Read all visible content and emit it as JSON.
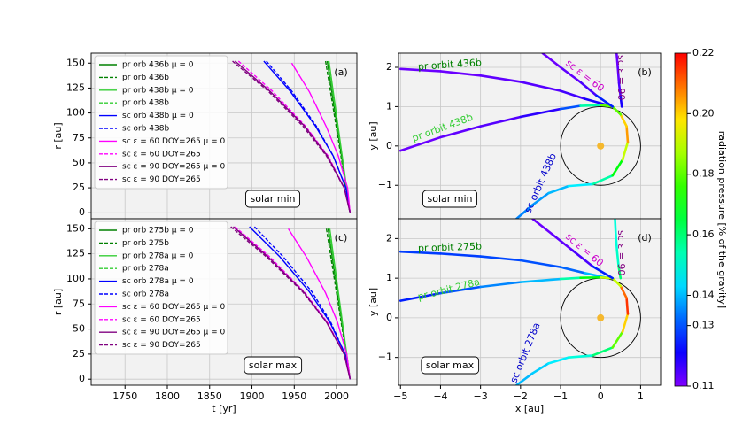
{
  "chart_data": [
    {
      "type": "line",
      "panel_label": "(a)",
      "annotation": "solar min",
      "ylabel": "r [au]",
      "xlim": [
        1710,
        2024
      ],
      "ylim": [
        -6,
        160
      ],
      "xticks": [
        1750,
        1800,
        1850,
        1900,
        1950,
        2000
      ],
      "xtick_labels": false,
      "yticks": [
        0,
        25,
        50,
        75,
        100,
        125,
        150
      ],
      "grid": true,
      "legend": "upper left",
      "series": [
        {
          "name": "pr orb 436b μ = 0",
          "color": "#008000",
          "dash": "solid",
          "x": [
            1989,
            2016
          ],
          "values": [
            152,
            0
          ]
        },
        {
          "name": "pr orb 436b",
          "color": "#008000",
          "dash": "dashed",
          "x": [
            1987,
            2016
          ],
          "values": [
            152,
            0
          ]
        },
        {
          "name": "pr orb 438b μ = 0",
          "color": "#32cd32",
          "dash": "solid",
          "x": [
            1991,
            2016
          ],
          "values": [
            152,
            0
          ]
        },
        {
          "name": "pr orb 438b",
          "color": "#32cd32",
          "dash": "dashed",
          "x": [
            1990,
            2016
          ],
          "values": [
            152,
            0
          ]
        },
        {
          "name": "sc orb 438b μ = 0",
          "color": "#0000ff",
          "dash": "solid",
          "x": [
            1914,
            1945,
            1975,
            1996,
            2011,
            2016
          ],
          "values": [
            152,
            122,
            87,
            57,
            25,
            0
          ]
        },
        {
          "name": "sc orb 438b",
          "color": "#0000ff",
          "dash": "dashed",
          "x": [
            1917,
            1947,
            1976,
            1996,
            2011,
            2016
          ],
          "values": [
            152,
            122,
            87,
            57,
            25,
            0
          ]
        },
        {
          "name": "sc ε = 60 DOY=265 μ = 0",
          "color": "#ff00ff",
          "dash": "solid",
          "x": [
            1947,
            1968,
            1988,
            2002,
            2013,
            2016
          ],
          "values": [
            150,
            121,
            86,
            57,
            25,
            0
          ]
        },
        {
          "name": "sc ε = 60 DOY=265",
          "color": "#ff00ff",
          "dash": "dashed",
          "x": [
            1884,
            1924,
            1963,
            1990,
            2009,
            2016
          ],
          "values": [
            152,
            122,
            87,
            57,
            25,
            0
          ]
        },
        {
          "name": "sc ε = 90 DOY=265 μ = 0",
          "color": "#800080",
          "dash": "solid",
          "x": [
            1880,
            1921,
            1962,
            1989,
            2009,
            2016
          ],
          "values": [
            152,
            122,
            87,
            57,
            25,
            0
          ]
        },
        {
          "name": "sc ε = 90 DOY=265",
          "color": "#800080",
          "dash": "dashed",
          "x": [
            1877,
            1919,
            1960,
            1988,
            2009,
            2016
          ],
          "values": [
            152,
            122,
            87,
            57,
            25,
            0
          ]
        }
      ]
    },
    {
      "type": "orbit",
      "panel_label": "(b)",
      "annotation": "solar min",
      "ylabel": "y [au]",
      "xlim": [
        -5.05,
        1.5
      ],
      "ylim": [
        -1.85,
        2.36
      ],
      "xticks": [
        {
          "value": -5,
          "label": "−5"
        },
        {
          "value": -4,
          "label": "−4"
        },
        {
          "value": -3,
          "label": "−3"
        },
        {
          "value": -2,
          "label": "−2"
        },
        {
          "value": -1,
          "label": "−1"
        },
        0,
        1
      ],
      "xtick_labels": false,
      "yticks": [
        {
          "value": -1,
          "label": "−1"
        },
        0,
        1,
        2
      ],
      "grid": true,
      "circle_radius": 1,
      "sun": [
        0,
        0
      ],
      "sun_color": "#f5b82e",
      "series": [
        {
          "name": "pr orbit 436b",
          "label_color": "#008000",
          "x": [
            -5,
            -4,
            -3,
            -2,
            -1,
            -0.4,
            0.3
          ],
          "values": [
            1.96,
            1.9,
            1.79,
            1.63,
            1.4,
            1.2,
            1.0
          ],
          "c": [
            0.112,
            0.112,
            0.113,
            0.114,
            0.116,
            0.12,
            0.14
          ]
        },
        {
          "name": "pr orbit 438b",
          "label_color": "#32cd32",
          "x": [
            -5,
            -4,
            -3,
            -2,
            -1,
            -0.5,
            0,
            0.3
          ],
          "values": [
            -0.12,
            0.22,
            0.5,
            0.74,
            0.94,
            1.02,
            1.04,
            1.0
          ],
          "c": [
            0.112,
            0.113,
            0.114,
            0.118,
            0.13,
            0.155,
            0.18,
            0.2
          ]
        },
        {
          "name": "sc orbit 438b",
          "label_color": "#0000cc",
          "x": [
            -2.1,
            -1.7,
            -1.3,
            -0.8,
            -0.2,
            0.3,
            0.55,
            0.68,
            0.65,
            0.5,
            0.3
          ],
          "values": [
            -1.85,
            -1.5,
            -1.2,
            -1.02,
            -0.97,
            -0.75,
            -0.35,
            0.1,
            0.5,
            0.8,
            1.0
          ],
          "c": [
            0.135,
            0.137,
            0.14,
            0.145,
            0.155,
            0.17,
            0.19,
            0.205,
            0.2,
            0.18,
            0.15
          ]
        },
        {
          "name": "sc ε = 60",
          "label_color": "#cc00cc",
          "x": [
            -1.45,
            -1.0,
            -0.5,
            -0.1,
            0.3
          ],
          "values": [
            2.36,
            2.0,
            1.62,
            1.28,
            1.0
          ],
          "c": [
            0.112,
            0.113,
            0.115,
            0.125,
            0.19
          ]
        },
        {
          "name": "sc ε = 90",
          "label_color": "#800080",
          "x": [
            0.4,
            0.43,
            0.46,
            0.5,
            0.53
          ],
          "values": [
            2.36,
            2.0,
            1.6,
            1.25,
            1.0
          ],
          "c": [
            0.112,
            0.113,
            0.115,
            0.12,
            0.14
          ]
        }
      ]
    },
    {
      "type": "line",
      "panel_label": "(c)",
      "annotation": "solar max",
      "ylabel": "r [au]",
      "xlabel": "t [yr]",
      "xlim": [
        1710,
        2024
      ],
      "ylim": [
        -6,
        160
      ],
      "xticks": [
        1750,
        1800,
        1850,
        1900,
        1950,
        2000
      ],
      "xtick_labels": true,
      "yticks": [
        0,
        25,
        50,
        75,
        100,
        125,
        150
      ],
      "grid": true,
      "legend": "upper left",
      "series": [
        {
          "name": "pr orb 275b μ = 0",
          "color": "#008000",
          "dash": "solid",
          "x": [
            1990,
            2016
          ],
          "values": [
            150,
            0
          ]
        },
        {
          "name": "pr orb 275b",
          "color": "#008000",
          "dash": "dashed",
          "x": [
            1988,
            2016
          ],
          "values": [
            150,
            0
          ]
        },
        {
          "name": "pr orb 278a μ = 0",
          "color": "#32cd32",
          "dash": "solid",
          "x": [
            1992,
            2016
          ],
          "values": [
            150,
            0
          ]
        },
        {
          "name": "pr orb 278a",
          "color": "#32cd32",
          "dash": "dashed",
          "x": [
            1991,
            2016
          ],
          "values": [
            150,
            0
          ]
        },
        {
          "name": "sc orb 278a μ = 0",
          "color": "#0000ff",
          "dash": "solid",
          "x": [
            1897,
            1933,
            1968,
            1992,
            2010,
            2016
          ],
          "values": [
            152,
            122,
            87,
            57,
            25,
            0
          ]
        },
        {
          "name": "sc orb 278a",
          "color": "#0000ff",
          "dash": "dashed",
          "x": [
            1903,
            1937,
            1971,
            1993,
            2010,
            2016
          ],
          "values": [
            152,
            122,
            87,
            57,
            25,
            0
          ]
        },
        {
          "name": "sc ε = 60 DOY=265 μ = 0",
          "color": "#ff00ff",
          "dash": "solid",
          "x": [
            1943,
            1965,
            1987,
            2001,
            2012,
            2016
          ],
          "values": [
            150,
            121,
            86,
            57,
            25,
            0
          ]
        },
        {
          "name": "sc ε = 60 DOY=265",
          "color": "#ff00ff",
          "dash": "dashed",
          "x": [
            1880,
            1921,
            1962,
            1989,
            2009,
            2016
          ],
          "values": [
            152,
            122,
            87,
            57,
            25,
            0
          ]
        },
        {
          "name": "sc ε = 90 DOY=265 μ = 0",
          "color": "#800080",
          "dash": "solid",
          "x": [
            1878,
            1919,
            1961,
            1988,
            2009,
            2016
          ],
          "values": [
            152,
            122,
            87,
            57,
            25,
            0
          ]
        },
        {
          "name": "sc ε = 90 DOY=265",
          "color": "#800080",
          "dash": "dashed",
          "x": [
            1875,
            1917,
            1960,
            1988,
            2009,
            2016
          ],
          "values": [
            152,
            122,
            87,
            57,
            25,
            0
          ]
        }
      ]
    },
    {
      "type": "orbit",
      "panel_label": "(d)",
      "annotation": "solar max",
      "ylabel": "y [au]",
      "xlabel": "x [au]",
      "xlim": [
        -5.05,
        1.5
      ],
      "ylim": [
        -1.7,
        2.5
      ],
      "xticks": [
        {
          "value": -5,
          "label": "−5"
        },
        {
          "value": -4,
          "label": "−4"
        },
        {
          "value": -3,
          "label": "−3"
        },
        {
          "value": -2,
          "label": "−2"
        },
        {
          "value": -1,
          "label": "−1"
        },
        0,
        1
      ],
      "xtick_labels": true,
      "yticks": [
        {
          "value": -1,
          "label": "−1"
        },
        0,
        1,
        2
      ],
      "grid": true,
      "circle_radius": 1,
      "sun": [
        0,
        0
      ],
      "sun_color": "#f5b82e",
      "series": [
        {
          "name": "pr orbit 275b",
          "label_color": "#008000",
          "x": [
            -5,
            -4,
            -3,
            -2,
            -1,
            -0.4,
            0.2
          ],
          "values": [
            1.67,
            1.62,
            1.55,
            1.45,
            1.28,
            1.13,
            1.0
          ],
          "c": [
            0.128,
            0.128,
            0.129,
            0.13,
            0.132,
            0.14,
            0.17
          ]
        },
        {
          "name": "pr orbit 278a",
          "label_color": "#32cd32",
          "x": [
            -5,
            -4,
            -3,
            -2,
            -1,
            -0.5,
            0,
            0.3
          ],
          "values": [
            0.43,
            0.62,
            0.78,
            0.9,
            0.98,
            1.01,
            1.02,
            1.0
          ],
          "c": [
            0.125,
            0.13,
            0.135,
            0.14,
            0.155,
            0.17,
            0.19,
            0.21
          ]
        },
        {
          "name": "sc orbit 278a",
          "label_color": "#0000cc",
          "x": [
            -2.1,
            -1.7,
            -1.3,
            -0.8,
            -0.2,
            0.3,
            0.55,
            0.68,
            0.65,
            0.5,
            0.3
          ],
          "values": [
            -1.7,
            -1.4,
            -1.15,
            -1.0,
            -0.95,
            -0.75,
            -0.35,
            0.1,
            0.5,
            0.8,
            1.0
          ],
          "c": [
            0.14,
            0.142,
            0.145,
            0.15,
            0.16,
            0.18,
            0.2,
            0.215,
            0.21,
            0.19,
            0.16
          ]
        },
        {
          "name": "sc ε = 60",
          "label_color": "#cc00cc",
          "x": [
            -1.7,
            -1.2,
            -0.7,
            -0.2,
            0.3
          ],
          "values": [
            2.5,
            2.1,
            1.7,
            1.3,
            1.0
          ],
          "c": [
            0.112,
            0.113,
            0.115,
            0.125,
            0.2
          ]
        },
        {
          "name": "sc ε = 90",
          "label_color": "#800080",
          "x": [
            0.36,
            0.38,
            0.41,
            0.45,
            0.5
          ],
          "values": [
            2.5,
            2.1,
            1.7,
            1.3,
            1.0
          ],
          "c": [
            0.15,
            0.15,
            0.152,
            0.16,
            0.19
          ]
        }
      ]
    },
    {
      "type": "colorbar",
      "label": "radiation pressure [% of the gravity]",
      "colormap": "rainbow",
      "clim": [
        0.11,
        0.22
      ],
      "ticks": [
        0.11,
        0.13,
        0.14,
        0.16,
        0.18,
        {
          "value": 0.2,
          "label": "0.20"
        },
        0.22
      ]
    }
  ]
}
